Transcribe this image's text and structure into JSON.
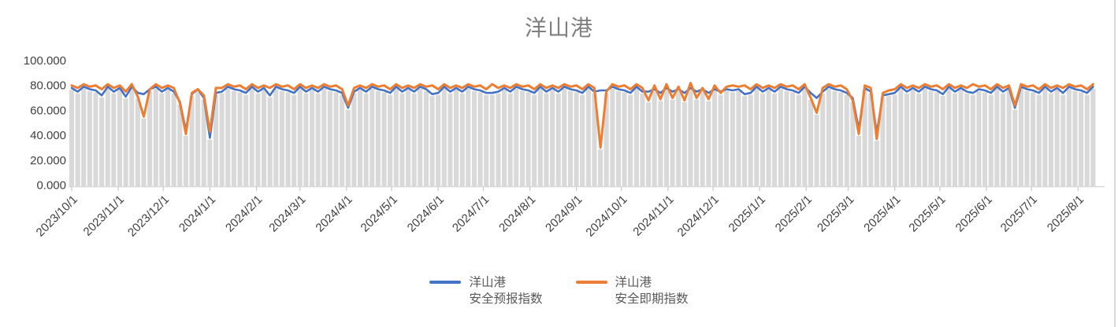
{
  "chart_data": {
    "type": "line",
    "title": "洋山港",
    "x_start_date": "2023/10/1",
    "x_step_days": 4,
    "x_total_days": 684,
    "x_tick_labels": [
      "2023/10/1",
      "2023/11/1",
      "2023/12/1",
      "2024/1/1",
      "2024/2/1",
      "2024/3/1",
      "2024/4/1",
      "2024/5/1",
      "2024/6/1",
      "2024/7/1",
      "2024/8/1",
      "2024/9/1",
      "2024/10/1",
      "2024/11/1",
      "2024/12/1",
      "2025/1/1",
      "2025/2/1",
      "2025/3/1",
      "2025/4/1",
      "2025/5/1",
      "2025/6/1",
      "2025/7/1",
      "2025/8/1"
    ],
    "x_tick_day_offsets": [
      0,
      31,
      61,
      92,
      123,
      152,
      183,
      213,
      244,
      274,
      305,
      336,
      366,
      397,
      427,
      458,
      489,
      517,
      548,
      578,
      609,
      639,
      670
    ],
    "ylim": [
      0,
      100
    ],
    "y_tick_labels": [
      "0.000",
      "20.000",
      "40.000",
      "60.000",
      "80.000",
      "100.000"
    ],
    "grid": "off",
    "legend_position": "bottom",
    "background_bars": {
      "color": "#d9d9d9",
      "note": "gray daily columns tracking the lower of the two series"
    },
    "series": [
      {
        "name": "洋山港安全预报指数",
        "color": "#4472C4",
        "values": [
          78,
          75,
          79,
          77,
          76,
          72,
          79,
          75,
          78,
          71,
          79,
          74,
          73,
          77,
          79,
          75,
          78,
          75,
          67,
          44,
          73,
          77,
          70,
          38,
          74,
          75,
          79,
          77,
          76,
          74,
          79,
          75,
          78,
          72,
          79,
          77,
          76,
          74,
          79,
          75,
          78,
          75,
          79,
          77,
          76,
          74,
          62,
          75,
          78,
          75,
          79,
          77,
          76,
          74,
          79,
          75,
          78,
          75,
          79,
          77,
          73,
          74,
          79,
          75,
          78,
          75,
          79,
          77,
          76,
          74,
          74,
          75,
          78,
          75,
          79,
          77,
          76,
          74,
          79,
          75,
          78,
          75,
          79,
          77,
          76,
          74,
          79,
          75,
          76,
          76,
          79,
          77,
          76,
          74,
          79,
          75,
          75,
          77,
          74,
          78,
          75,
          77,
          74,
          78,
          75,
          77,
          74,
          77,
          75,
          77,
          76,
          77,
          73,
          74,
          79,
          75,
          78,
          75,
          79,
          77,
          76,
          74,
          79,
          74,
          70,
          75,
          79,
          77,
          76,
          74,
          70,
          45,
          78,
          75,
          42,
          72,
          73,
          74,
          79,
          75,
          78,
          75,
          79,
          77,
          76,
          73,
          79,
          75,
          78,
          75,
          74,
          77,
          76,
          74,
          79,
          75,
          78,
          62,
          79,
          77,
          76,
          74,
          79,
          75,
          78,
          74,
          79,
          77,
          76,
          74,
          79
        ]
      },
      {
        "name": "洋山港安全即期指数",
        "color": "#ED7D31",
        "values": [
          80,
          78,
          81,
          79,
          80,
          77,
          81,
          78,
          80,
          75,
          81,
          71,
          55,
          77,
          81,
          78,
          80,
          78,
          66,
          41,
          74,
          77,
          72,
          43,
          78,
          78,
          81,
          79,
          80,
          77,
          81,
          78,
          80,
          78,
          81,
          79,
          80,
          77,
          81,
          78,
          80,
          78,
          81,
          79,
          80,
          77,
          64,
          78,
          80,
          78,
          81,
          79,
          80,
          77,
          81,
          78,
          80,
          78,
          81,
          79,
          80,
          77,
          81,
          78,
          80,
          78,
          81,
          79,
          80,
          77,
          81,
          78,
          80,
          78,
          81,
          79,
          80,
          77,
          81,
          78,
          80,
          78,
          81,
          79,
          80,
          77,
          81,
          78,
          30,
          75,
          81,
          79,
          80,
          77,
          81,
          78,
          68,
          80,
          69,
          81,
          70,
          79,
          68,
          82,
          70,
          78,
          69,
          80,
          74,
          79,
          80,
          79,
          80,
          77,
          81,
          78,
          80,
          78,
          81,
          79,
          80,
          77,
          81,
          70,
          58,
          78,
          81,
          79,
          80,
          77,
          68,
          41,
          80,
          78,
          37,
          74,
          76,
          77,
          81,
          78,
          80,
          78,
          81,
          79,
          80,
          77,
          81,
          78,
          80,
          78,
          81,
          79,
          80,
          77,
          81,
          78,
          80,
          64,
          81,
          79,
          80,
          77,
          81,
          78,
          80,
          78,
          81,
          79,
          80,
          77,
          81
        ]
      }
    ]
  },
  "legend": {
    "items": [
      {
        "line1": "洋山港",
        "line2": "安全预报指数"
      },
      {
        "line1": "洋山港",
        "line2": "安全即期指数"
      }
    ]
  }
}
